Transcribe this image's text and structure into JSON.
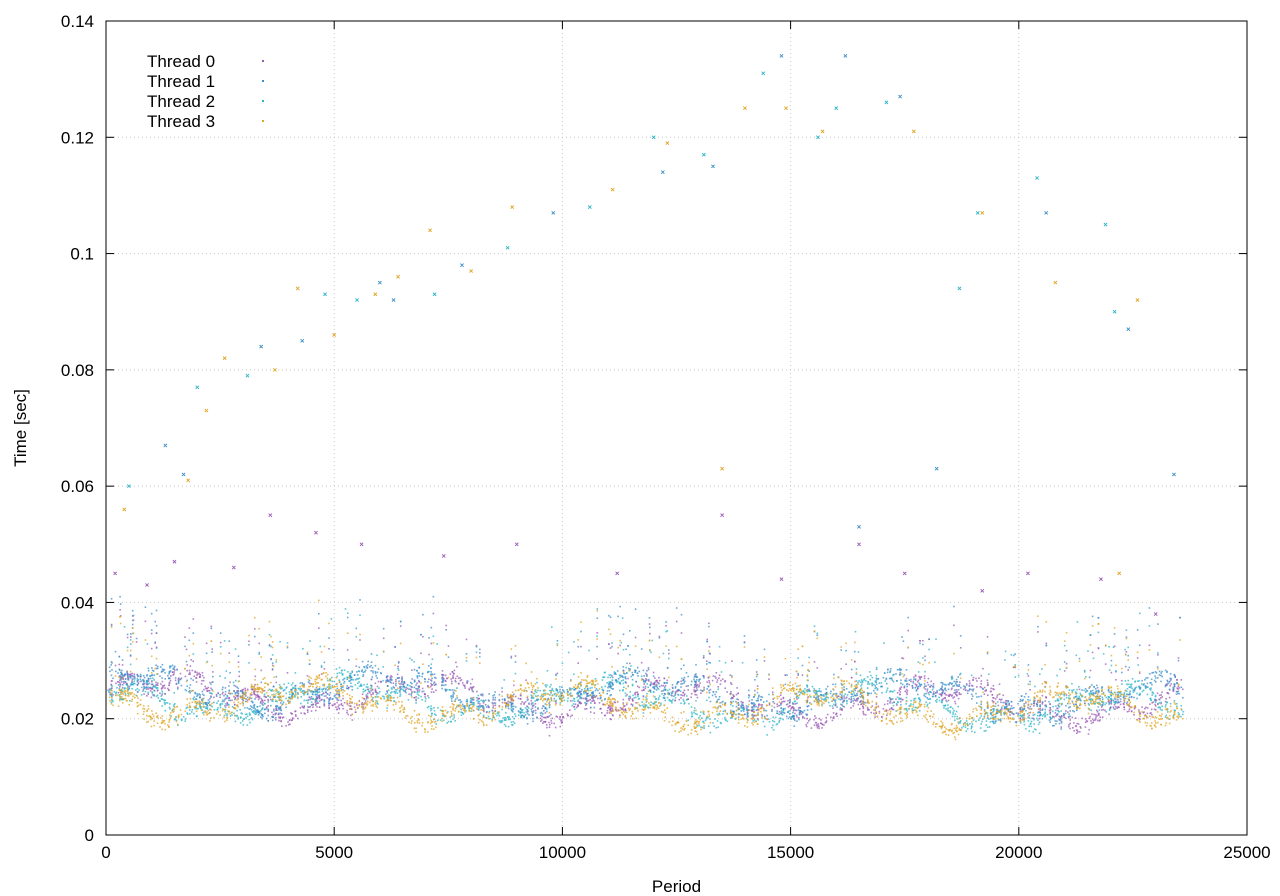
{
  "chart_data": {
    "type": "scatter",
    "title": "",
    "xlabel": "Period",
    "ylabel": "Time [sec]",
    "xlim": [
      0,
      25000
    ],
    "ylim": [
      0,
      0.14
    ],
    "xticks": [
      0,
      5000,
      10000,
      15000,
      20000,
      25000
    ],
    "xtick_labels": [
      "0",
      "5000",
      "10000",
      "15000",
      "20000",
      "25000"
    ],
    "yticks": [
      0,
      0.02,
      0.04,
      0.06,
      0.08,
      0.1,
      0.12,
      0.14
    ],
    "ytick_labels": [
      "0",
      "0.02",
      "0.04",
      "0.06",
      "0.08",
      "0.1",
      "0.12",
      "0.14"
    ],
    "grid": true,
    "legend_position": "top-left",
    "x_range_of_points": [
      0,
      23600
    ],
    "series": [
      {
        "name": "Thread 0",
        "color": "#9b59b6",
        "typical_band": [
          0.018,
          0.03
        ],
        "points": [
          [
            200,
            0.045
          ],
          [
            900,
            0.043
          ],
          [
            1500,
            0.047
          ],
          [
            2800,
            0.046
          ],
          [
            3600,
            0.055
          ],
          [
            4600,
            0.052
          ],
          [
            5600,
            0.05
          ],
          [
            7400,
            0.048
          ],
          [
            9000,
            0.05
          ],
          [
            11200,
            0.045
          ],
          [
            13500,
            0.055
          ],
          [
            14800,
            0.044
          ],
          [
            16500,
            0.05
          ],
          [
            17500,
            0.045
          ],
          [
            19200,
            0.042
          ],
          [
            20200,
            0.045
          ],
          [
            21800,
            0.044
          ],
          [
            23000,
            0.038
          ]
        ]
      },
      {
        "name": "Thread 1",
        "color": "#3b8fc9",
        "typical_band": [
          0.018,
          0.032
        ],
        "points": [
          [
            1300,
            0.067
          ],
          [
            1700,
            0.062
          ],
          [
            3400,
            0.084
          ],
          [
            4300,
            0.085
          ],
          [
            6000,
            0.095
          ],
          [
            6300,
            0.092
          ],
          [
            7800,
            0.098
          ],
          [
            9800,
            0.107
          ],
          [
            12200,
            0.114
          ],
          [
            13300,
            0.115
          ],
          [
            14800,
            0.134
          ],
          [
            16200,
            0.134
          ],
          [
            16500,
            0.053
          ],
          [
            17400,
            0.127
          ],
          [
            18200,
            0.063
          ],
          [
            20600,
            0.107
          ],
          [
            22400,
            0.087
          ],
          [
            23400,
            0.062
          ]
        ]
      },
      {
        "name": "Thread 2",
        "color": "#2bb5c8",
        "typical_band": [
          0.017,
          0.03
        ],
        "points": [
          [
            500,
            0.06
          ],
          [
            2000,
            0.077
          ],
          [
            3100,
            0.079
          ],
          [
            4800,
            0.093
          ],
          [
            5500,
            0.092
          ],
          [
            7200,
            0.093
          ],
          [
            8800,
            0.101
          ],
          [
            10600,
            0.108
          ],
          [
            12000,
            0.12
          ],
          [
            13100,
            0.117
          ],
          [
            14400,
            0.131
          ],
          [
            15600,
            0.12
          ],
          [
            16000,
            0.125
          ],
          [
            17100,
            0.126
          ],
          [
            18700,
            0.094
          ],
          [
            19100,
            0.107
          ],
          [
            20400,
            0.113
          ],
          [
            21900,
            0.105
          ],
          [
            22100,
            0.09
          ]
        ]
      },
      {
        "name": "Thread 3",
        "color": "#e0a526",
        "typical_band": [
          0.016,
          0.03
        ],
        "points": [
          [
            400,
            0.056
          ],
          [
            1800,
            0.061
          ],
          [
            2200,
            0.073
          ],
          [
            2600,
            0.082
          ],
          [
            3700,
            0.08
          ],
          [
            4200,
            0.094
          ],
          [
            5000,
            0.086
          ],
          [
            5900,
            0.093
          ],
          [
            6400,
            0.096
          ],
          [
            7100,
            0.104
          ],
          [
            8000,
            0.097
          ],
          [
            8900,
            0.108
          ],
          [
            11100,
            0.111
          ],
          [
            12300,
            0.119
          ],
          [
            13500,
            0.063
          ],
          [
            14000,
            0.125
          ],
          [
            14900,
            0.125
          ],
          [
            15700,
            0.121
          ],
          [
            17700,
            0.121
          ],
          [
            19200,
            0.107
          ],
          [
            20800,
            0.095
          ],
          [
            22600,
            0.092
          ],
          [
            22200,
            0.045
          ]
        ]
      }
    ]
  }
}
